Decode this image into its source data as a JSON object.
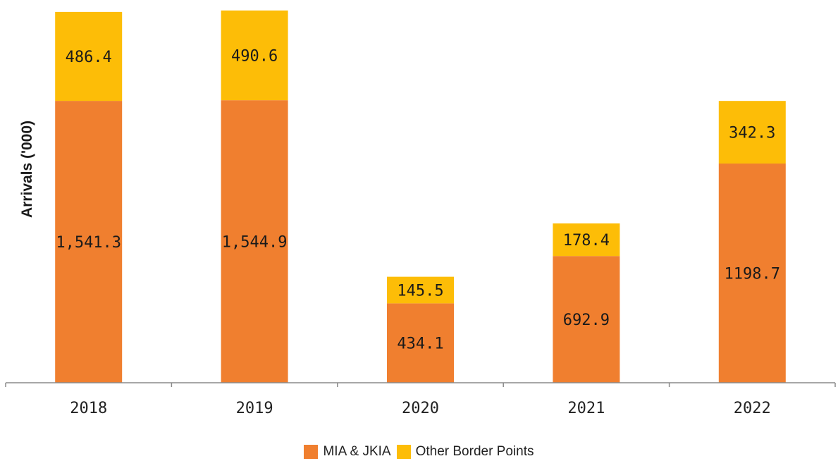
{
  "chart_data": {
    "type": "bar",
    "stacked": true,
    "categories": [
      "2018",
      "2019",
      "2020",
      "2021",
      "2022"
    ],
    "series": [
      {
        "name": "MIA & JKIA",
        "color": "#f07f2f",
        "values": [
          1541.3,
          1544.9,
          434.1,
          692.9,
          1198.7
        ],
        "labels": [
          "1,541.3",
          "1,544.9",
          "434.1",
          "692.9",
          "1198.7"
        ]
      },
      {
        "name": "Other Border Points",
        "color": "#fdbd07",
        "values": [
          486.4,
          490.6,
          145.5,
          178.4,
          342.3
        ],
        "labels": [
          "486.4",
          "490.6",
          "145.5",
          "178.4",
          "342.3"
        ]
      }
    ],
    "title": "",
    "xlabel": "",
    "ylabel": "Arrivals ('000)",
    "ylim": [
      0,
      2035
    ],
    "grid": false,
    "legend_position": "bottom"
  }
}
